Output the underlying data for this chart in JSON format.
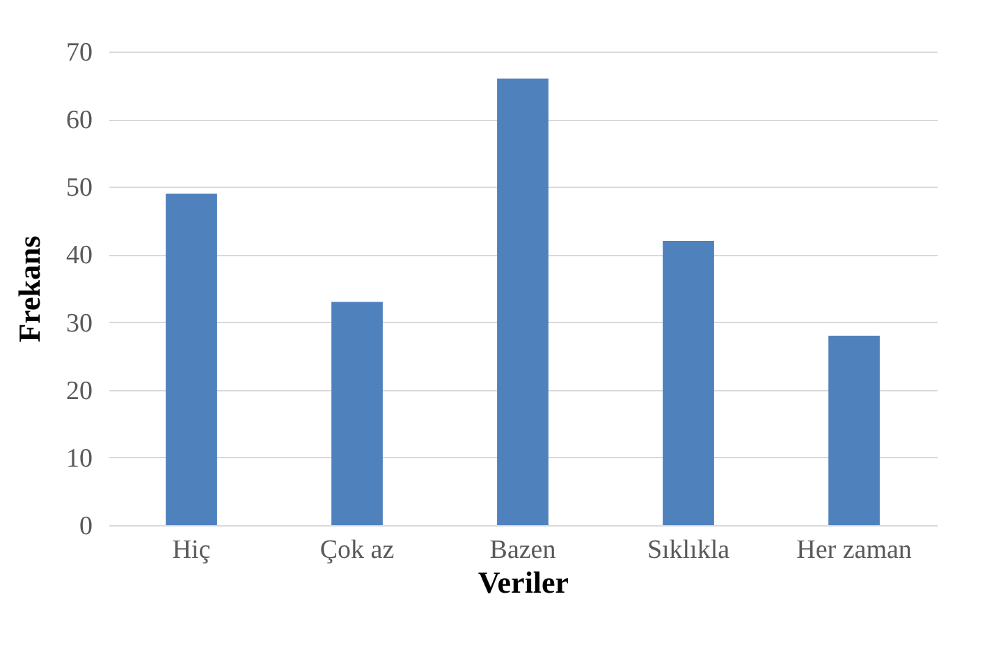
{
  "chart_data": {
    "type": "bar",
    "xlabel": "Veriler",
    "ylabel": "Frekans",
    "categories": [
      "Hiç",
      "Çok az",
      "Bazen",
      "Sıklıkla",
      "Her zaman"
    ],
    "values": [
      49,
      33,
      66,
      42,
      28
    ],
    "color": "#4f81bd",
    "ylim": [
      0,
      70
    ],
    "yticks": [
      0,
      10,
      20,
      30,
      40,
      50,
      60,
      70
    ],
    "grid": "y"
  }
}
